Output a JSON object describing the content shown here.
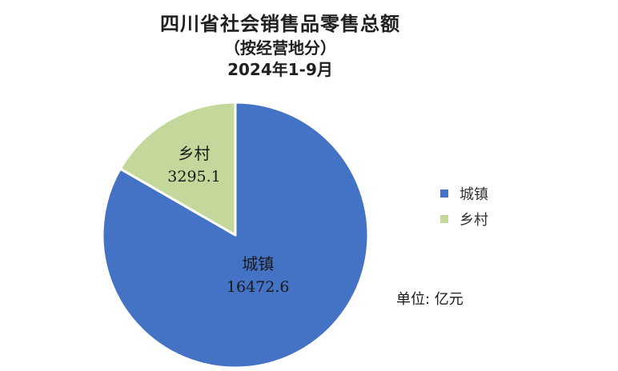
{
  "chart_data": {
    "type": "pie",
    "title": "四川省社会销售品零售总额",
    "subtitle": "（按经营地分）",
    "period": "2024年1-9月",
    "unit_note": "单位: 亿元",
    "legend_position": "right",
    "slices": [
      {
        "label": "城镇",
        "value": 16472.6,
        "value_text": "16472.6",
        "color": "#4472C4"
      },
      {
        "label": "乡村",
        "value": 3295.1,
        "value_text": "3295.1",
        "color": "#C5D89B"
      }
    ]
  }
}
